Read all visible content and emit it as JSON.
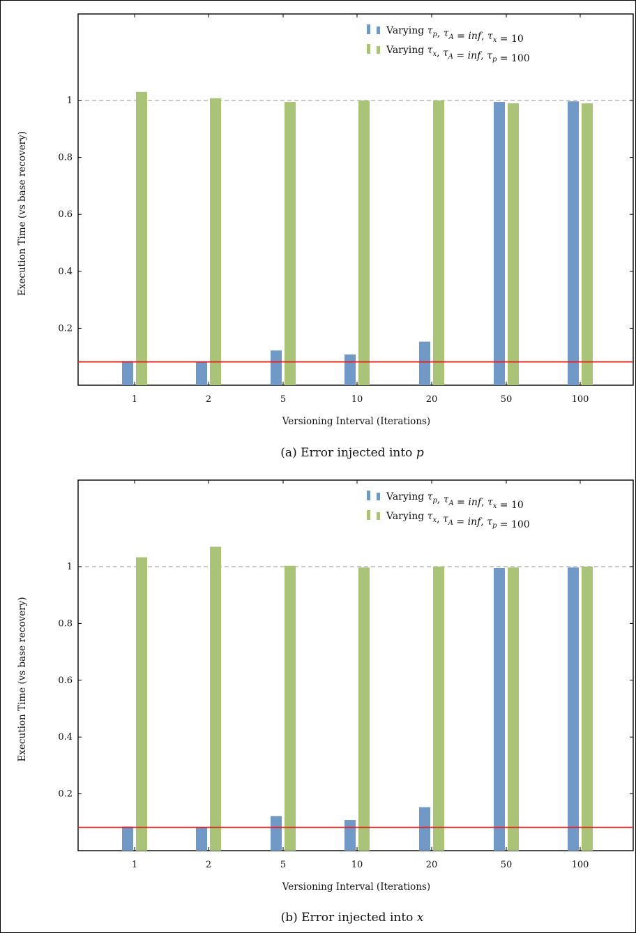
{
  "chart_data": [
    {
      "type": "bar",
      "caption": "(a) Error injected into p",
      "xlabel": "Versioning Interval (Iterations)",
      "ylabel": "Execution Time (vs base recovery)",
      "categories": [
        "1",
        "2",
        "5",
        "10",
        "20",
        "50",
        "100"
      ],
      "yticks": [
        "0.2",
        "0.4",
        "0.6",
        "0.8",
        "1"
      ],
      "ylim": [
        0,
        1.3
      ],
      "grid": false,
      "legend_position": "top-right",
      "series": [
        {
          "name": "Varying τp, τA = inf, τx = 10",
          "color": "#7199c8",
          "values": [
            0.085,
            0.082,
            0.122,
            0.108,
            0.153,
            0.995,
            0.997
          ]
        },
        {
          "name": "Varying τx, τA = inf, τp = 100",
          "color": "#a9c476",
          "values": [
            1.03,
            1.008,
            0.995,
            1.0,
            1.0,
            0.99,
            0.99
          ]
        }
      ],
      "reference_lines": [
        {
          "value": 1.0,
          "style": "dashed",
          "color": "#aaaaaa"
        },
        {
          "value": 0.082,
          "style": "solid",
          "color": "#e02020"
        }
      ]
    },
    {
      "type": "bar",
      "caption": "(b) Error injected into x",
      "xlabel": "Versioning Interval (Iterations)",
      "ylabel": "Execution Time (vs base recovery)",
      "categories": [
        "1",
        "2",
        "5",
        "10",
        "20",
        "50",
        "100"
      ],
      "yticks": [
        "0.2",
        "0.4",
        "0.6",
        "0.8",
        "1"
      ],
      "ylim": [
        0,
        1.3
      ],
      "grid": false,
      "legend_position": "top-right",
      "series": [
        {
          "name": "Varying τp, τA = inf, τx = 10",
          "color": "#7199c8",
          "values": [
            0.085,
            0.082,
            0.122,
            0.108,
            0.153,
            0.995,
            0.997
          ]
        },
        {
          "name": "Varying τx, τA = inf, τp = 100",
          "color": "#a9c476",
          "values": [
            1.033,
            1.07,
            1.003,
            0.997,
            1.0,
            0.997,
            1.0
          ]
        }
      ],
      "reference_lines": [
        {
          "value": 1.0,
          "style": "dashed",
          "color": "#aaaaaa"
        },
        {
          "value": 0.082,
          "style": "solid",
          "color": "#e02020"
        }
      ]
    }
  ]
}
